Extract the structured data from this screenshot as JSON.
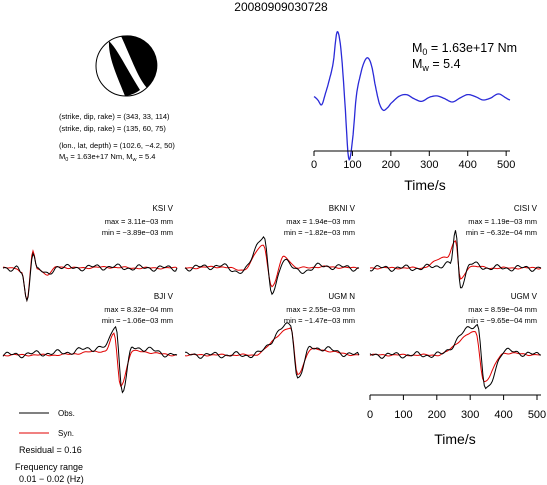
{
  "event_id": "20080909030728",
  "mechanism": {
    "plane1": "(strike, dip, rake) = (343, 33, 114)",
    "plane2": "(strike, dip, rake) = (135, 60, 75)",
    "location": "(lon., lat, depth) = (102.6, −4.2, 50)",
    "m0_sym": "M",
    "m0_sub": "0",
    "m0_val": " = 1.63e+17 Nm, ",
    "mw_sym": "M",
    "mw_sub": "w",
    "mw_val": " = 5.4"
  },
  "stf": {
    "m0_sym": "M",
    "m0_sub": "0",
    "m0_val": " = 1.63e+17 Nm",
    "mw_sym": "M",
    "mw_sub": "w",
    "mw_val": " = 5.4",
    "xlabel": "Time/s",
    "xticks": [
      "0",
      "100",
      "200",
      "300",
      "400",
      "500"
    ]
  },
  "traces_xlabel": "Time/s",
  "traces_xticks": [
    "0",
    "100",
    "200",
    "300",
    "400",
    "500"
  ],
  "legend": {
    "obs": "Obs.",
    "syn": "Syn.",
    "obs_color": "#000000",
    "syn_color": "#e00000"
  },
  "residual": "Residual = 0.16",
  "freq_label": "Frequency range",
  "freq_value": "0.01 − 0.02 (Hz)",
  "stations": [
    {
      "name": "KSI V",
      "max": "max = 3.11e−03 mm",
      "min": "min = −3.89e−03 mm"
    },
    {
      "name": "BKNI V",
      "max": "max = 1.94e−03 mm",
      "min": "min = −1.82e−03 mm"
    },
    {
      "name": "CISI V",
      "max": "max = 1.19e−03 mm",
      "min": "min = −6.32e−04 mm"
    },
    {
      "name": "BJI V",
      "max": "max = 8.32e−04 mm",
      "min": "min = −1.06e−03 mm"
    },
    {
      "name": "UGM N",
      "max": "max = 2.55e−03 mm",
      "min": "min = −1.47e−03 mm"
    },
    {
      "name": "UGM V",
      "max": "max = 8.59e−04 mm",
      "min": "min = −9.65e−04 mm"
    }
  ],
  "chart_data": [
    {
      "type": "line",
      "x": [
        0,
        10,
        20,
        30,
        40,
        50,
        60,
        70,
        80,
        90,
        100,
        110,
        120,
        130,
        140,
        150,
        160,
        170,
        180,
        190,
        200,
        220,
        240,
        260,
        280,
        300,
        320,
        340,
        360,
        380,
        400,
        420,
        440,
        460,
        480,
        500,
        510
      ],
      "series": [
        {
          "values": [
            0.05,
            0.0,
            -0.07,
            0.1,
            0.3,
            0.55,
            1.0,
            0.75,
            0.0,
            -0.85,
            -0.6,
            0.05,
            0.35,
            0.55,
            0.62,
            0.5,
            0.2,
            -0.05,
            -0.15,
            -0.12,
            -0.05,
            0.05,
            0.08,
            0.02,
            -0.02,
            0.04,
            0.06,
            0.02,
            -0.03,
            0.03,
            0.08,
            0.05,
            0.0,
            0.03,
            0.09,
            0.03,
            0.0
          ],
          "color": "#2a2ad8"
        }
      ],
      "xlim": [
        0,
        510
      ],
      "xlabel": "Time/s",
      "xticks": [
        0,
        100,
        200,
        300,
        400,
        500
      ]
    },
    {
      "type": "line",
      "x_range": [
        0,
        510
      ],
      "series": [
        {
          "name": "Obs.",
          "color": "#000000"
        },
        {
          "name": "Syn.",
          "color": "#e00000"
        }
      ],
      "panels": [
        {
          "station": "KSI V",
          "max_mm": 0.00311,
          "min_mm": -0.00389,
          "obs": [
            [
              0,
              0.0
            ],
            [
              40,
              0.0
            ],
            [
              55,
              -0.15
            ],
            [
              70,
              -0.9
            ],
            [
              88,
              0.45
            ],
            [
              100,
              0.0
            ],
            [
              130,
              -0.2
            ],
            [
              160,
              0.05
            ],
            [
              200,
              0.0
            ],
            [
              300,
              0.03
            ],
            [
              400,
              0.0
            ],
            [
              510,
              0.0
            ]
          ],
          "syn": [
            [
              0,
              0.0
            ],
            [
              40,
              0.0
            ],
            [
              55,
              -0.12
            ],
            [
              70,
              -0.85
            ],
            [
              88,
              0.43
            ],
            [
              100,
              0.0
            ],
            [
              130,
              -0.18
            ],
            [
              160,
              0.04
            ],
            [
              200,
              0.0
            ],
            [
              300,
              0.02
            ],
            [
              400,
              0.0
            ],
            [
              510,
              0.0
            ]
          ]
        },
        {
          "station": "BKNI V",
          "max_mm": 0.00194,
          "min_mm": -0.00182,
          "obs": [
            [
              0,
              0.0
            ],
            [
              100,
              0.05
            ],
            [
              170,
              -0.1
            ],
            [
              230,
              0.85
            ],
            [
              255,
              -0.7
            ],
            [
              290,
              0.25
            ],
            [
              330,
              -0.1
            ],
            [
              400,
              0.05
            ],
            [
              510,
              0.0
            ]
          ],
          "syn": [
            [
              0,
              0.0
            ],
            [
              100,
              0.03
            ],
            [
              170,
              -0.05
            ],
            [
              230,
              0.6
            ],
            [
              255,
              -0.5
            ],
            [
              290,
              0.3
            ],
            [
              330,
              0.0
            ],
            [
              400,
              0.03
            ],
            [
              510,
              0.0
            ]
          ]
        },
        {
          "station": "CISI V",
          "max_mm": 0.00119,
          "min_mm": -0.000632,
          "obs": [
            [
              0,
              0.0
            ],
            [
              150,
              0.0
            ],
            [
              240,
              0.1
            ],
            [
              255,
              0.95
            ],
            [
              270,
              -0.45
            ],
            [
              300,
              0.1
            ],
            [
              360,
              0.0
            ],
            [
              510,
              0.0
            ]
          ],
          "syn": [
            [
              0,
              0.0
            ],
            [
              150,
              0.0
            ],
            [
              230,
              0.3
            ],
            [
              255,
              0.7
            ],
            [
              270,
              -0.3
            ],
            [
              300,
              0.05
            ],
            [
              360,
              0.0
            ],
            [
              510,
              0.0
            ]
          ]
        },
        {
          "station": "BJI V",
          "max_mm": 0.000832,
          "min_mm": -0.00106,
          "obs": [
            [
              0,
              0.0
            ],
            [
              150,
              0.05
            ],
            [
              300,
              0.2
            ],
            [
              330,
              0.8
            ],
            [
              350,
              -0.95
            ],
            [
              380,
              0.2
            ],
            [
              510,
              0.0
            ]
          ],
          "syn": [
            [
              0,
              0.0
            ],
            [
              150,
              0.0
            ],
            [
              300,
              0.1
            ],
            [
              325,
              0.55
            ],
            [
              345,
              -0.8
            ],
            [
              380,
              0.1
            ],
            [
              510,
              0.0
            ]
          ]
        },
        {
          "station": "UGM N",
          "max_mm": 0.00255,
          "min_mm": -0.00147,
          "obs": [
            [
              0,
              0.0
            ],
            [
              200,
              0.0
            ],
            [
              310,
              0.8
            ],
            [
              330,
              -0.6
            ],
            [
              370,
              0.2
            ],
            [
              510,
              0.0
            ]
          ],
          "syn": [
            [
              0,
              0.0
            ],
            [
              200,
              0.0
            ],
            [
              310,
              0.7
            ],
            [
              330,
              -0.5
            ],
            [
              370,
              0.15
            ],
            [
              510,
              0.0
            ]
          ]
        },
        {
          "station": "UGM V",
          "max_mm": 0.000859,
          "min_mm": -0.000965,
          "obs": [
            [
              0,
              0.0
            ],
            [
              200,
              0.0
            ],
            [
              320,
              0.8
            ],
            [
              345,
              -0.95
            ],
            [
              400,
              0.1
            ],
            [
              510,
              0.0
            ]
          ],
          "syn": [
            [
              0,
              0.0
            ],
            [
              200,
              0.0
            ],
            [
              315,
              0.6
            ],
            [
              340,
              -0.7
            ],
            [
              400,
              0.05
            ],
            [
              510,
              0.0
            ]
          ]
        }
      ]
    }
  ]
}
